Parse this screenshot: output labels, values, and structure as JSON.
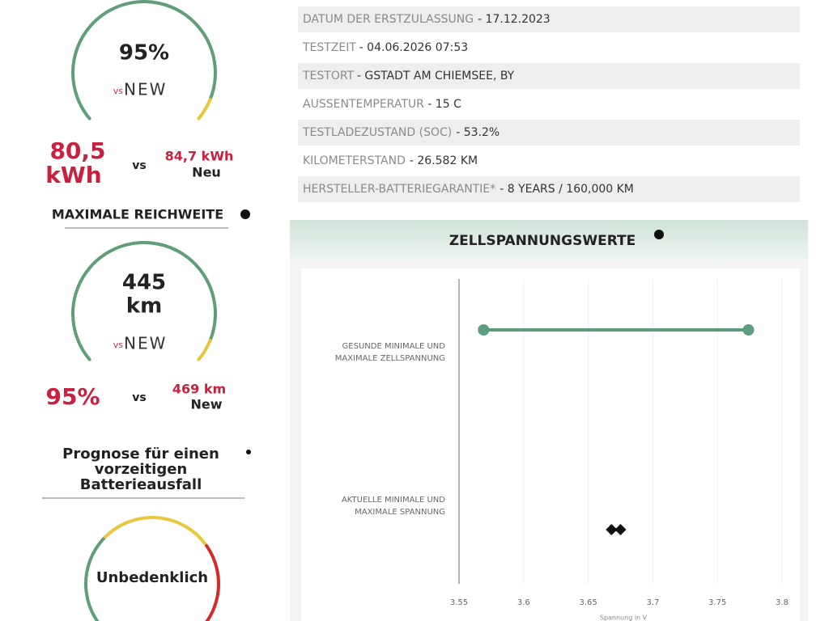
{
  "left": {
    "capacity": {
      "gauge_value": "95%",
      "logo_prefix": "vs",
      "logo": "NEW",
      "current": [
        "80,5",
        "kWh"
      ],
      "vs": "vs",
      "new_value": "84,7 kWh",
      "new_label": "Neu"
    },
    "range_heading": "MAXIMALE REICHWEITE",
    "range": {
      "gauge_value": [
        "445",
        "km"
      ],
      "logo_prefix": "vs",
      "logo": "NEW",
      "current": "95%",
      "vs": "vs",
      "new_value": "469 km",
      "new_label": "New"
    },
    "failure_heading": [
      "Prognose für einen",
      "vorzeitigen",
      "Batterieausfall"
    ],
    "failure": {
      "gauge_value": "Unbedenklich"
    }
  },
  "info_rows": [
    [
      "DATUM DER ERSTZULASSUNG",
      "- 17.12.2023"
    ],
    [
      "TESTZEIT",
      "- 04.06.2026 07:53"
    ],
    [
      "TESTORT",
      "- GSTADT AM CHIEMSEE, BY"
    ],
    [
      "AUSSENTEMPERATUR",
      "- 15 C"
    ],
    [
      "TESTLADEZUSTAND (SOC)",
      "- 53.2%"
    ],
    [
      "KILOMETERSTAND",
      "- 26.582 KM"
    ],
    [
      "HERSTELLER-BATTERIEGARANTIE*",
      "- 8 YEARS / 160,000 KM"
    ]
  ],
  "chart_data": {
    "type": "dumbbell",
    "title": "ZELLSPANNUNGSWERTE",
    "categories": [
      [
        "GESUNDE MINIMALE UND",
        "MAXIMALE ZELLSPANNUNG"
      ],
      [
        "AKTUELLE MINIMALE UND",
        "MAXIMALE SPANNUNG"
      ]
    ],
    "min_values": [
      3.569,
      3.668
    ],
    "max_values": [
      3.774,
      3.675
    ],
    "colors": [
      "#5a9e7f",
      "#111111"
    ],
    "markers": [
      "circle",
      "diamond"
    ],
    "xlim": [
      3.55,
      3.8
    ],
    "xticks": [
      3.55,
      3.6,
      3.65,
      3.7,
      3.75,
      3.8
    ],
    "x_label": "Spannung in V",
    "grid": true
  }
}
